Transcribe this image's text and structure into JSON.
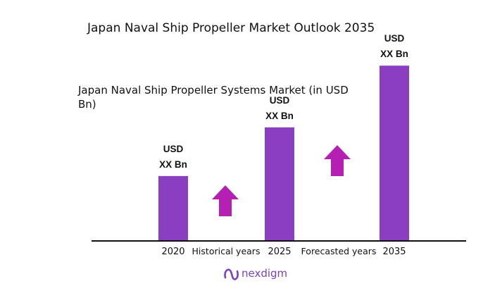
{
  "chart_data": {
    "type": "bar",
    "title": "Japan Naval Ship Propeller Market Outlook 2035",
    "subtitle_lines": [
      "Japan Naval Ship Propeller Systems Market (in USD",
      "Bn)"
    ],
    "categories": [
      "2020",
      "2025",
      "2035"
    ],
    "values": [
      1.0,
      1.75,
      2.7
    ],
    "value_label_lines": [
      "USD",
      "XX Bn"
    ],
    "period_labels": [
      "Historical years",
      "Forecasted years"
    ],
    "ylim": [
      0,
      2.8
    ],
    "grid": false,
    "legend": "none",
    "colors": {
      "bar": "#8a3fc1",
      "arrow": "#b61fb4",
      "axis": "#111111"
    }
  },
  "brand": {
    "name": "nexdigm",
    "color": "#7b3fc4"
  }
}
